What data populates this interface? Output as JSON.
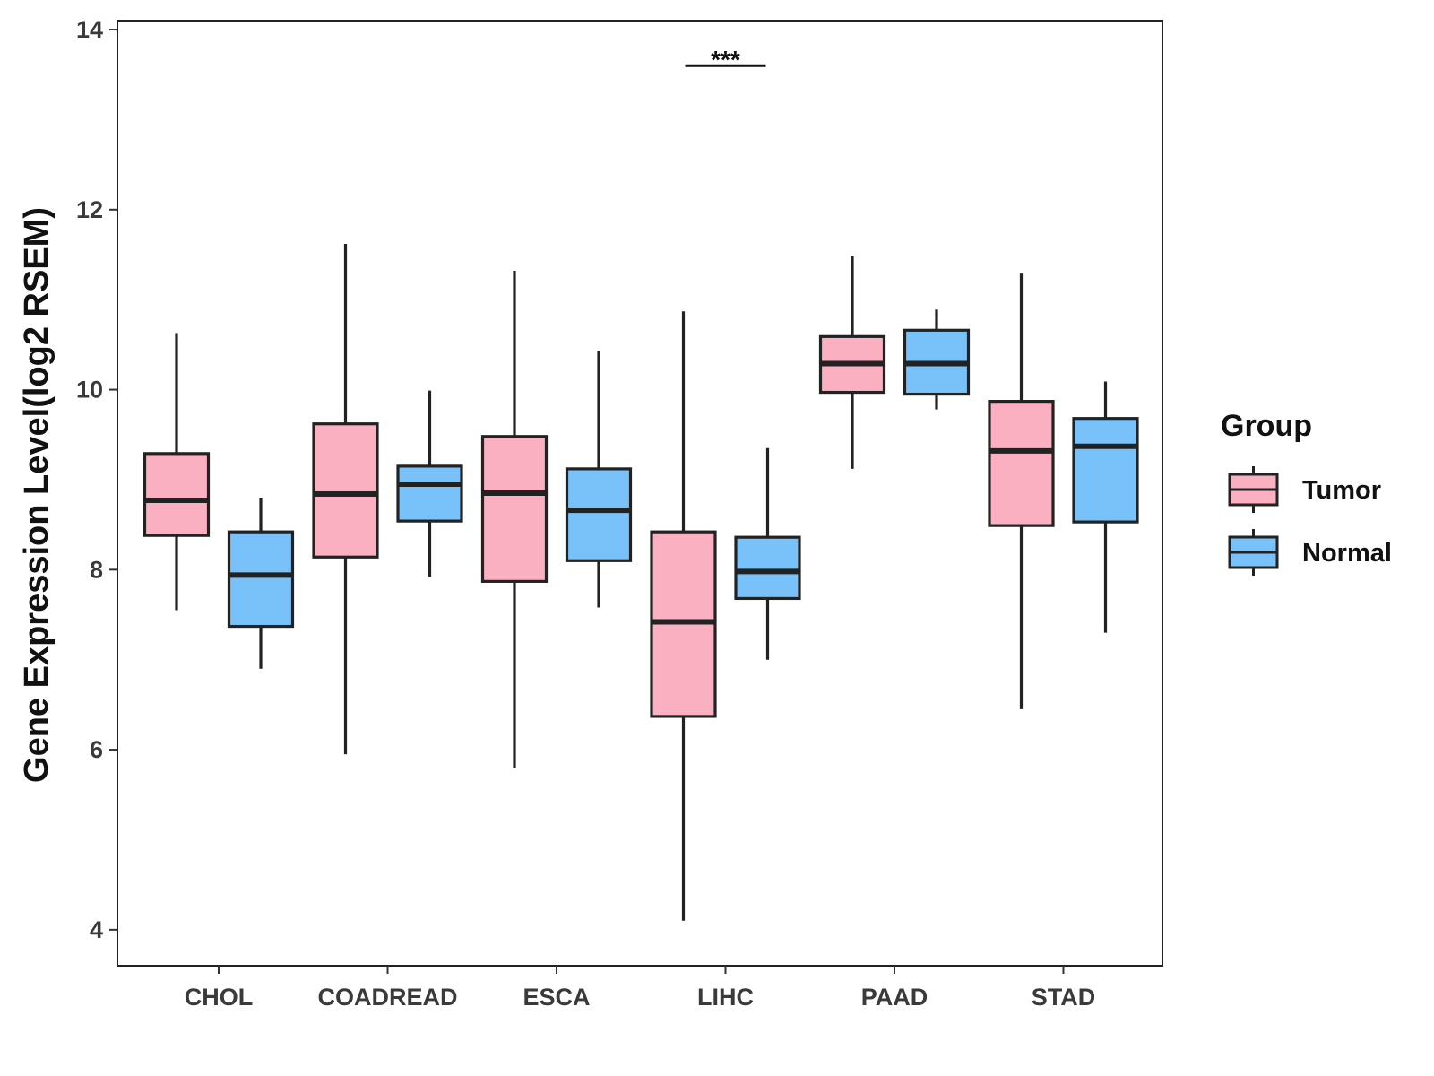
{
  "chart_data": {
    "type": "boxplot",
    "title": "",
    "xlabel": "",
    "ylabel": "Gene Expression Level(log2 RSEM)",
    "ylim": [
      3.6,
      14.1
    ],
    "yticks": [
      4,
      6,
      8,
      10,
      12,
      14
    ],
    "categories": [
      "CHOL",
      "COADREAD",
      "ESCA",
      "LIHC",
      "PAAD",
      "STAD"
    ],
    "legend": {
      "title": "Group",
      "position": "right"
    },
    "series": [
      {
        "name": "Tumor",
        "color": "#FBB0C2",
        "boxes": [
          {
            "min": 7.55,
            "q1": 8.38,
            "median": 8.77,
            "q3": 9.29,
            "max": 10.63
          },
          {
            "min": 5.95,
            "q1": 8.14,
            "median": 8.84,
            "q3": 9.62,
            "max": 11.62
          },
          {
            "min": 5.8,
            "q1": 7.87,
            "median": 8.85,
            "q3": 9.48,
            "max": 11.32
          },
          {
            "min": 4.1,
            "q1": 6.37,
            "median": 7.42,
            "q3": 8.42,
            "max": 10.87
          },
          {
            "min": 9.12,
            "q1": 9.97,
            "median": 10.29,
            "q3": 10.59,
            "max": 11.48
          },
          {
            "min": 6.45,
            "q1": 8.49,
            "median": 9.32,
            "q3": 9.87,
            "max": 11.29
          }
        ]
      },
      {
        "name": "Normal",
        "color": "#78C2F9",
        "boxes": [
          {
            "min": 6.9,
            "q1": 7.37,
            "median": 7.94,
            "q3": 8.42,
            "max": 8.8
          },
          {
            "min": 7.92,
            "q1": 8.54,
            "median": 8.95,
            "q3": 9.15,
            "max": 9.99
          },
          {
            "min": 7.58,
            "q1": 8.1,
            "median": 8.66,
            "q3": 9.12,
            "max": 10.43
          },
          {
            "min": 7.0,
            "q1": 7.68,
            "median": 7.98,
            "q3": 8.36,
            "max": 9.35
          },
          {
            "min": 9.78,
            "q1": 9.95,
            "median": 10.29,
            "q3": 10.66,
            "max": 10.89
          },
          {
            "min": 7.3,
            "q1": 8.53,
            "median": 9.37,
            "q3": 9.68,
            "max": 10.09
          }
        ]
      }
    ],
    "annotations": [
      {
        "category": "LIHC",
        "label": "***",
        "y": 13.6
      }
    ]
  }
}
